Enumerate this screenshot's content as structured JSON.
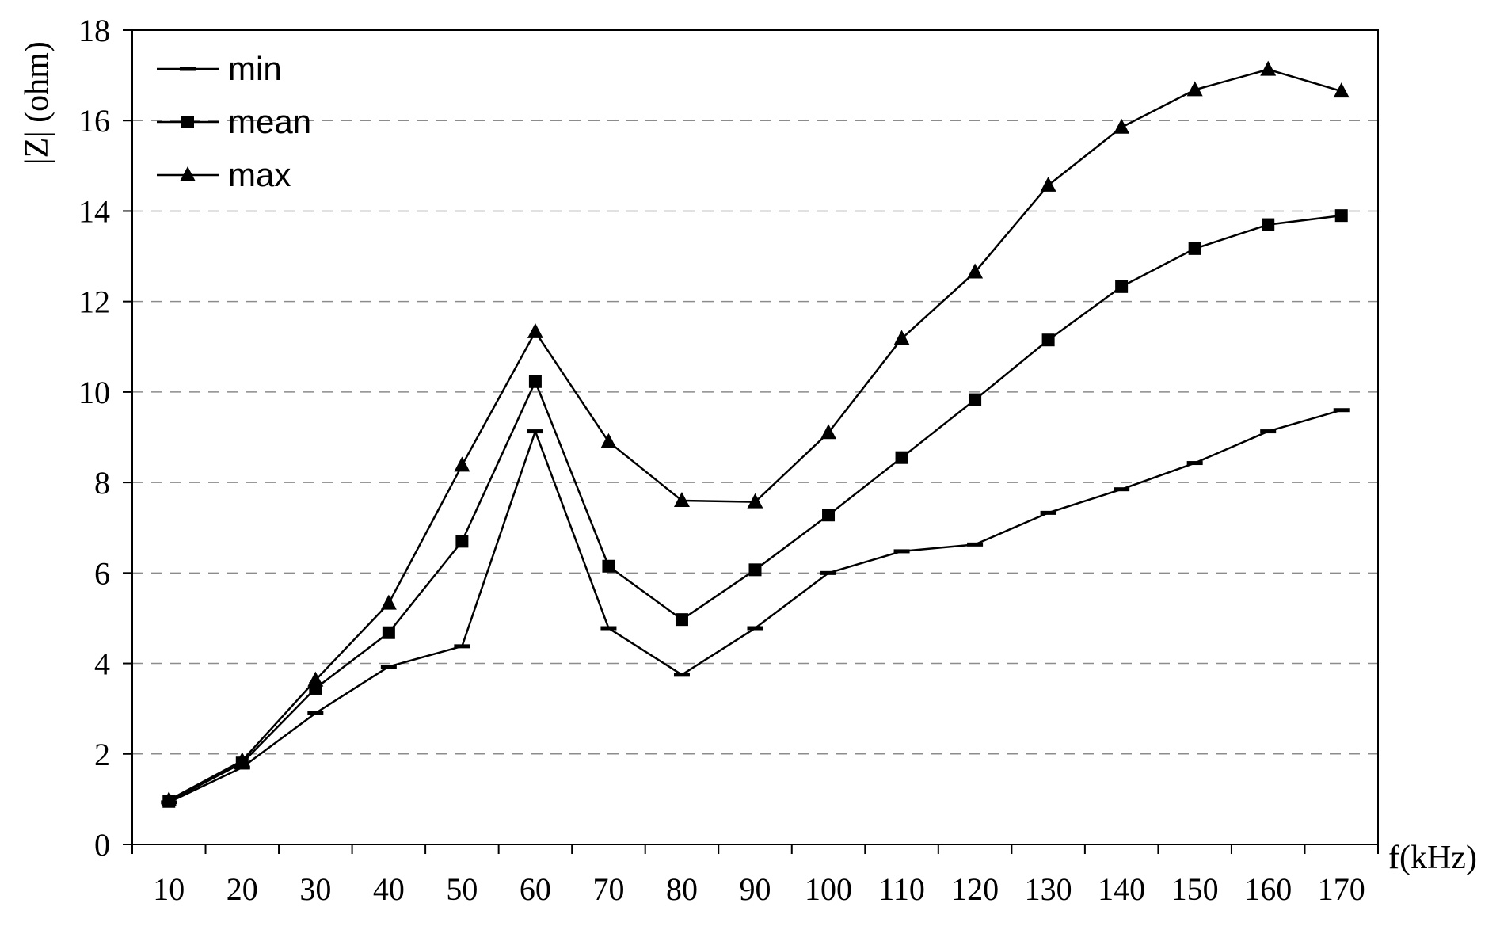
{
  "chart_data": {
    "type": "line",
    "title": "",
    "xlabel": "f(kHz)",
    "ylabel": "|Z| (ohm)",
    "categories": [
      "10",
      "20",
      "30",
      "40",
      "50",
      "60",
      "70",
      "80",
      "90",
      "100",
      "110",
      "120",
      "130",
      "140",
      "150",
      "160",
      "170"
    ],
    "ylim": [
      0,
      18
    ],
    "yticks": [
      0,
      2,
      4,
      6,
      8,
      10,
      12,
      14,
      16,
      18
    ],
    "grid": "horizontal dashed",
    "legend_position": "top-left",
    "series": [
      {
        "name": "min",
        "marker": "dash",
        "values": [
          0.93,
          1.7,
          2.9,
          3.93,
          4.38,
          9.13,
          4.78,
          3.75,
          4.78,
          6.0,
          6.48,
          6.63,
          7.33,
          7.85,
          8.43,
          9.13,
          9.6
        ]
      },
      {
        "name": "mean",
        "marker": "square",
        "values": [
          0.95,
          1.8,
          3.45,
          4.68,
          6.7,
          10.23,
          6.15,
          4.97,
          6.07,
          7.28,
          8.55,
          9.83,
          11.15,
          12.33,
          13.17,
          13.7,
          13.9
        ]
      },
      {
        "name": "max",
        "marker": "triangle",
        "values": [
          0.98,
          1.85,
          3.63,
          5.33,
          8.38,
          11.33,
          8.9,
          7.6,
          7.57,
          9.1,
          11.18,
          12.65,
          14.57,
          15.85,
          16.68,
          17.13,
          16.65
        ]
      }
    ],
    "colors": {
      "line": "#000000",
      "grid": "#8c8c8c",
      "background": "#ffffff"
    }
  }
}
